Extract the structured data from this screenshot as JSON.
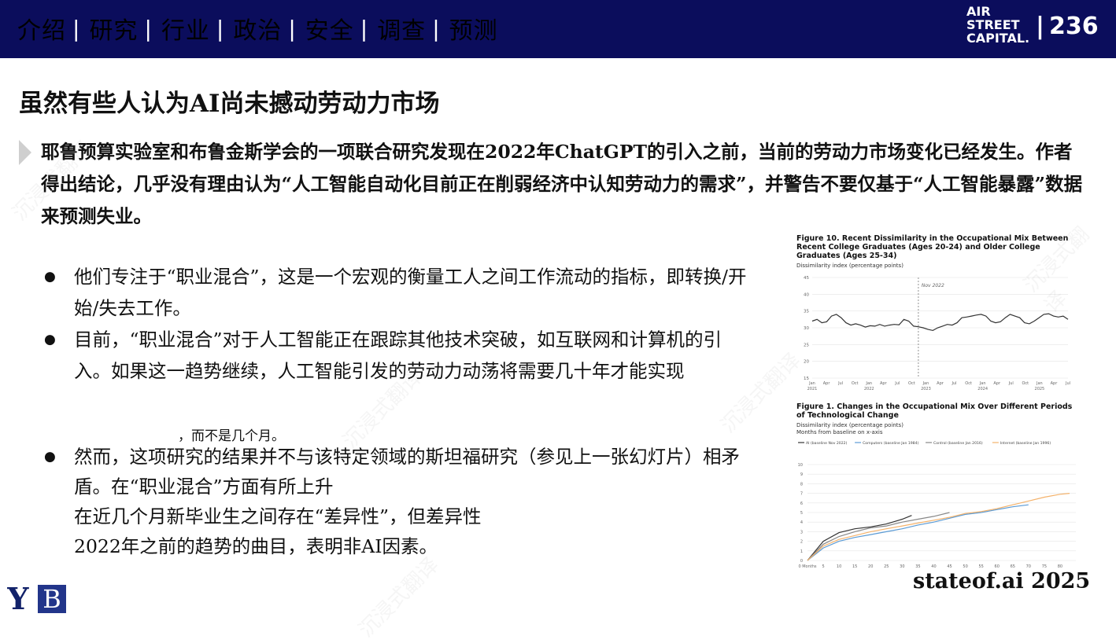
{
  "nav": [
    {
      "label": "介绍",
      "sep": "|"
    },
    {
      "label": "研究",
      "sep": "|"
    },
    {
      "label": "行业",
      "sep": "|"
    },
    {
      "label": "政治",
      "sep": "|"
    },
    {
      "label": "安全",
      "sep": "|"
    },
    {
      "label": "调查",
      "sep": "|"
    },
    {
      "label": "预测",
      "sep": ""
    }
  ],
  "logo": {
    "line1": "AIR",
    "line2": "STREET",
    "line3": "CAPITAL."
  },
  "page_number": {
    "sep": "|",
    "value": "236"
  },
  "title": "虽然有些人认为AI尚未撼动劳动力市场",
  "lead": "耶鲁预算实验室和布鲁金斯学会的一项联合研究发现在2022年ChatGPT的引入之前，当前的劳动力市场变化已经发生。作者得出结论，几乎没有理由认为“人工智能自动化目前正在削弱经济中认知劳动力的需求”，并警告不要仅基于“人工智能暴露”数据来预测失业。",
  "bullets": [
    "他们专注于“职业混合”，这是一个宏观的衡量工人之间工作流动的指标，即转换/开始/失去工作。",
    "目前，“职业混合”对于人工智能正在跟踪其他技术突破，如互联网和计算机的引入。如果这一趋势继续，人工智能引发的劳动力动荡将需要几十年才能实现"
  ],
  "bullet_note": "，而不是几个月。",
  "bullet3": {
    "line1": "然而，这项研究的结果并不与该特定领域的斯坦福研究（参见上一张幻灯片）相矛盾。在“职业混合”方面有所上升",
    "line2": "在近几个月新毕业生之间存在“差异性”，但差异性",
    "line3": "2022年之前的趋势的曲目，表明非AI因素。"
  },
  "figure1": {
    "title": "Figure 10. Recent Dissimilarity in the Occupational Mix Between Recent College Graduates (Ages 20-24) and Older College Graduates (Ages 25-34)",
    "ylabel": "Dissimilarity index (percentage points)",
    "annotation": "Nov 2022"
  },
  "figure2": {
    "title": "Figure 1. Changes in the Occupational Mix Over Different Periods of Technological Change",
    "ylabel": "Dissimilarity index (percentage points)",
    "xnote": "Months from baseline on x-axis"
  },
  "chart_data": [
    {
      "type": "line",
      "title": "Figure 10. Recent Dissimilarity in the Occupational Mix Between Recent College Graduates (Ages 20-24) and Older College Graduates (Ages 25-34)",
      "ylabel": "Dissimilarity index (percentage points)",
      "xlabel": "",
      "ylim": [
        15,
        45
      ],
      "yticks": [
        15,
        20,
        25,
        30,
        35,
        40,
        45
      ],
      "xticks": [
        "Jan",
        "Apr",
        "Jul",
        "Oct",
        "Jan",
        "Apr",
        "Jul",
        "Oct",
        "Jan",
        "Apr",
        "Jul",
        "Oct",
        "Jan",
        "Apr",
        "Jul",
        "Oct",
        "Jan",
        "Apr",
        "Jul"
      ],
      "year_labels": [
        "2021",
        "2022",
        "2023",
        "2024",
        "2025"
      ],
      "annotation": "Nov 2022",
      "vline_index": 22,
      "series": [
        {
          "name": "Dissimilarity",
          "color": "#333333",
          "values": [
            32,
            32.5,
            31.5,
            31.8,
            33.5,
            34,
            33,
            31.5,
            30.8,
            31.2,
            30.8,
            30.2,
            30.6,
            30.5,
            31,
            30.5,
            30.8,
            31,
            30.9,
            32.5,
            32,
            30.5,
            30.3,
            30,
            29.5,
            29.2,
            30,
            30.5,
            31,
            30.8,
            31.5,
            33,
            33.2,
            33.5,
            33.8,
            34,
            33.5,
            32,
            31.5,
            31.8,
            33,
            34,
            33.5,
            33,
            31.5,
            31.2,
            32,
            33,
            34,
            34.2,
            33.5,
            33.2,
            33.5,
            32.5
          ]
        }
      ]
    },
    {
      "type": "line",
      "title": "Figure 1. Changes in the Occupational Mix Over Different Periods of Technological Change",
      "ylabel": "Dissimilarity index (percentage points)",
      "xlabel": "Months from baseline on x-axis",
      "ylim": [
        0,
        10
      ],
      "yticks": [
        0,
        1,
        2,
        3,
        4,
        5,
        6,
        7,
        8,
        9,
        10
      ],
      "xticks": [
        "0 Months",
        "5",
        "10",
        "15",
        "20",
        "25",
        "30",
        "35",
        "40",
        "45",
        "50",
        "55",
        "60",
        "65",
        "70",
        "75",
        "80"
      ],
      "series": [
        {
          "name": "AI (baseline Nov 2022)",
          "color": "#333333",
          "x": [
            0,
            5,
            10,
            15,
            20,
            25,
            30,
            33
          ],
          "values": [
            0,
            2.0,
            2.9,
            3.3,
            3.5,
            3.8,
            4.3,
            4.7
          ]
        },
        {
          "name": "Computers (baseline Jan 1984)",
          "color": "#5b9bd5",
          "x": [
            0,
            5,
            10,
            15,
            20,
            25,
            30,
            35,
            40,
            45,
            50,
            55,
            60,
            65,
            70
          ],
          "values": [
            0,
            1.3,
            2.0,
            2.4,
            2.7,
            3.0,
            3.3,
            3.7,
            4.0,
            4.4,
            4.8,
            5.0,
            5.3,
            5.6,
            5.8
          ]
        },
        {
          "name": "Control (baseline Jan 2016)",
          "color": "#888888",
          "x": [
            0,
            5,
            10,
            15,
            20,
            25,
            30,
            35,
            40,
            45
          ],
          "values": [
            0,
            1.7,
            2.5,
            3.0,
            3.4,
            3.6,
            4.0,
            4.3,
            4.6,
            5.0
          ]
        },
        {
          "name": "Internet (baseline Jan 1996)",
          "color": "#f4b26b",
          "x": [
            0,
            5,
            10,
            15,
            20,
            25,
            30,
            35,
            40,
            45,
            50,
            55,
            60,
            65,
            70,
            75,
            80,
            83
          ],
          "values": [
            0,
            1.5,
            2.2,
            2.6,
            3.0,
            3.3,
            3.6,
            3.9,
            4.2,
            4.5,
            4.9,
            5.1,
            5.4,
            5.8,
            6.2,
            6.6,
            6.9,
            7.0
          ]
        }
      ]
    }
  ],
  "footer": "stateof.ai 2025",
  "yale_logo": "Y",
  "brookings_logo": "B",
  "watermark": "沉浸式翻译"
}
